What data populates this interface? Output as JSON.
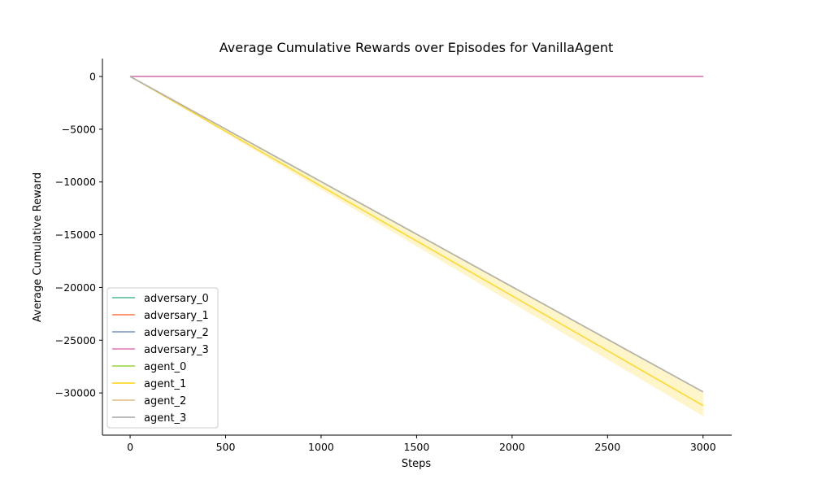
{
  "chart_data": {
    "type": "line",
    "title": "Average Cumulative Rewards over Episodes for VanillaAgent",
    "xlabel": "Steps",
    "ylabel": "Average Cumulative Reward",
    "xlim": [
      -145,
      3150
    ],
    "ylim": [
      -34000,
      1700
    ],
    "x_ticks": [
      0,
      500,
      1000,
      1500,
      2000,
      2500,
      3000
    ],
    "y_ticks": [
      0,
      -5000,
      -10000,
      -15000,
      -20000,
      -25000,
      -30000
    ],
    "grid": false,
    "legend_position": "lower-left",
    "series": [
      {
        "name": "adversary_0",
        "color": "#66c2a5",
        "x": [
          0,
          3000
        ],
        "y": [
          0,
          0
        ]
      },
      {
        "name": "adversary_1",
        "color": "#fc8d62",
        "x": [
          0,
          3000
        ],
        "y": [
          0,
          0
        ]
      },
      {
        "name": "adversary_2",
        "color": "#8da0cb",
        "x": [
          0,
          3000
        ],
        "y": [
          0,
          0
        ]
      },
      {
        "name": "adversary_3",
        "color": "#e78ac3",
        "x": [
          0,
          3000
        ],
        "y": [
          0,
          0
        ]
      },
      {
        "name": "agent_0",
        "color": "#a6d854",
        "x": [
          0,
          3000
        ],
        "y": [
          0,
          -29900
        ]
      },
      {
        "name": "agent_1",
        "color": "#ffd92f",
        "x": [
          0,
          3000
        ],
        "y": [
          0,
          -31200
        ],
        "band": {
          "lower": [
            0,
            -32200
          ],
          "upper": [
            0,
            -30000
          ]
        }
      },
      {
        "name": "agent_2",
        "color": "#e5c494",
        "x": [
          0,
          3000
        ],
        "y": [
          0,
          -29900
        ]
      },
      {
        "name": "agent_3",
        "color": "#b3b3b3",
        "x": [
          0,
          3000
        ],
        "y": [
          0,
          -29900
        ]
      }
    ]
  }
}
